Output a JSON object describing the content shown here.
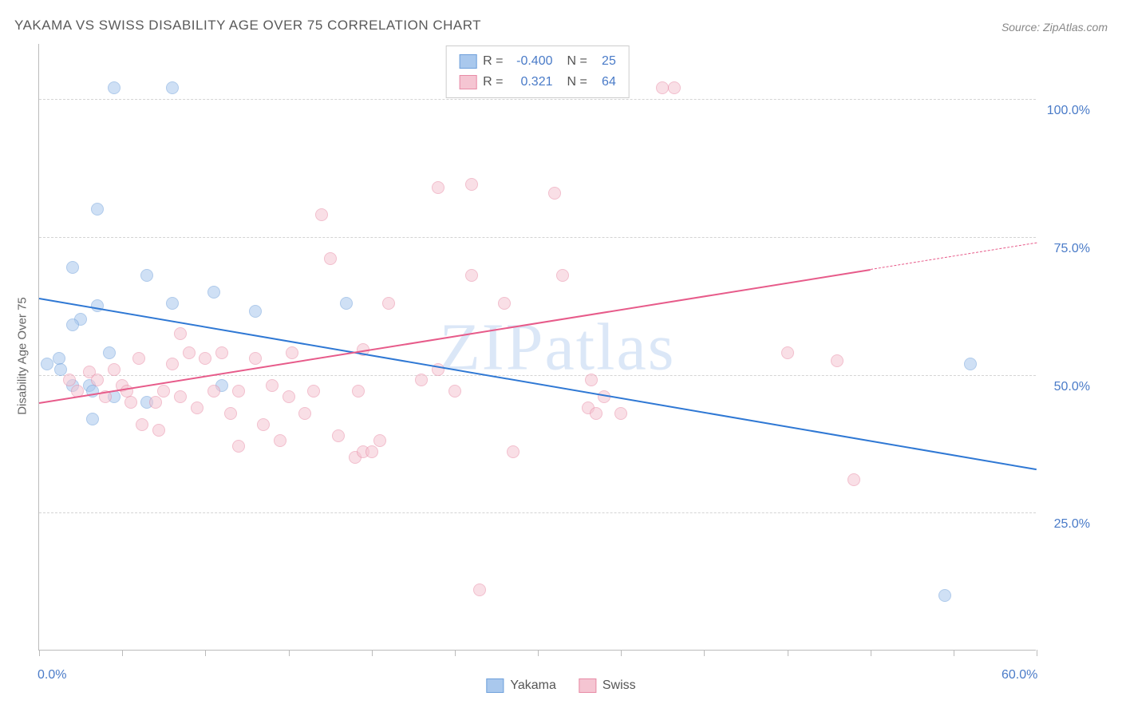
{
  "title": "YAKAMA VS SWISS DISABILITY AGE OVER 75 CORRELATION CHART",
  "source_label": "Source: ZipAtlas.com",
  "watermark": "ZIPatlas",
  "y_axis_label": "Disability Age Over 75",
  "chart": {
    "type": "scatter",
    "xlim": [
      0,
      60
    ],
    "ylim": [
      0,
      110
    ],
    "x_ticks": [
      0,
      5,
      10,
      15,
      20,
      25,
      30,
      35,
      40,
      45,
      50,
      55,
      60
    ],
    "x_tick_labels": {
      "0": "0.0%",
      "60": "60.0%"
    },
    "y_gridlines": [
      25,
      50,
      75,
      100
    ],
    "y_tick_labels": {
      "25": "25.0%",
      "50": "50.0%",
      "75": "75.0%",
      "100": "100.0%"
    },
    "background_color": "#ffffff",
    "grid_color": "#d4d4d4",
    "axis_color": "#bbbbbb",
    "label_color": "#4a7bc8",
    "point_radius": 8,
    "point_opacity": 0.55,
    "series": [
      {
        "name": "Yakama",
        "color_fill": "#a9c8ed",
        "color_stroke": "#6fa0db",
        "R": "-0.400",
        "N": "25",
        "trend": {
          "x1": 0,
          "y1": 64,
          "x2": 60,
          "y2": 33,
          "color": "#2f78d4",
          "dashed_from": null
        },
        "points": [
          [
            4.5,
            102
          ],
          [
            8,
            102
          ],
          [
            3.5,
            80
          ],
          [
            2,
            69.5
          ],
          [
            6.5,
            68
          ],
          [
            3.5,
            62.5
          ],
          [
            8,
            63
          ],
          [
            2.5,
            60
          ],
          [
            2,
            59
          ],
          [
            10.5,
            65
          ],
          [
            13,
            61.5
          ],
          [
            1.2,
            53
          ],
          [
            0.5,
            52
          ],
          [
            1.3,
            51
          ],
          [
            2,
            48
          ],
          [
            3,
            48
          ],
          [
            3.2,
            47
          ],
          [
            4.5,
            46
          ],
          [
            4.2,
            54
          ],
          [
            6.5,
            45
          ],
          [
            11,
            48
          ],
          [
            18.5,
            63
          ],
          [
            3.2,
            42
          ],
          [
            56,
            52
          ],
          [
            54.5,
            10
          ]
        ]
      },
      {
        "name": "Swiss",
        "color_fill": "#f5c5d2",
        "color_stroke": "#e88ba6",
        "R": "0.321",
        "N": "64",
        "trend": {
          "x1": 0,
          "y1": 45,
          "x2": 60,
          "y2": 74,
          "color": "#e75b8a",
          "dashed_from": 50
        },
        "points": [
          [
            37.5,
            102
          ],
          [
            38.2,
            102
          ],
          [
            24,
            84
          ],
          [
            26,
            84.5
          ],
          [
            31,
            83
          ],
          [
            17,
            79
          ],
          [
            17.5,
            71
          ],
          [
            21,
            63
          ],
          [
            26,
            68
          ],
          [
            31.5,
            68
          ],
          [
            8.5,
            57.5
          ],
          [
            45,
            54
          ],
          [
            48,
            52.5
          ],
          [
            49,
            31
          ],
          [
            1.8,
            49
          ],
          [
            2.3,
            47
          ],
          [
            3,
            50.5
          ],
          [
            3.5,
            49
          ],
          [
            4,
            46
          ],
          [
            4.5,
            51
          ],
          [
            5,
            48
          ],
          [
            5.3,
            47
          ],
          [
            5.5,
            45
          ],
          [
            6,
            53
          ],
          [
            6.2,
            41
          ],
          [
            7,
            45
          ],
          [
            7.5,
            47
          ],
          [
            8,
            52
          ],
          [
            8.5,
            46
          ],
          [
            9,
            54
          ],
          [
            9.5,
            44
          ],
          [
            10,
            53
          ],
          [
            10.5,
            47
          ],
          [
            11,
            54
          ],
          [
            11.5,
            43
          ],
          [
            12,
            47
          ],
          [
            13,
            53
          ],
          [
            13.5,
            41
          ],
          [
            14,
            48
          ],
          [
            15,
            46
          ],
          [
            15.2,
            54
          ],
          [
            16,
            43
          ],
          [
            16.5,
            47
          ],
          [
            12,
            37
          ],
          [
            14.5,
            38
          ],
          [
            18,
            39
          ],
          [
            19,
            35
          ],
          [
            19.5,
            36
          ],
          [
            20,
            36
          ],
          [
            20.5,
            38
          ],
          [
            19.2,
            47
          ],
          [
            19.5,
            54.5
          ],
          [
            23,
            49
          ],
          [
            24,
            51
          ],
          [
            25,
            47
          ],
          [
            28,
            63
          ],
          [
            33,
            44
          ],
          [
            33.5,
            43
          ],
          [
            34,
            46
          ],
          [
            33.2,
            49
          ],
          [
            28.5,
            36
          ],
          [
            35,
            43
          ],
          [
            26.5,
            11
          ],
          [
            7.2,
            40
          ]
        ]
      }
    ]
  },
  "bottom_legend": [
    {
      "label": "Yakama",
      "fill": "#a9c8ed",
      "stroke": "#6fa0db"
    },
    {
      "label": "Swiss",
      "fill": "#f5c5d2",
      "stroke": "#e88ba6"
    }
  ]
}
